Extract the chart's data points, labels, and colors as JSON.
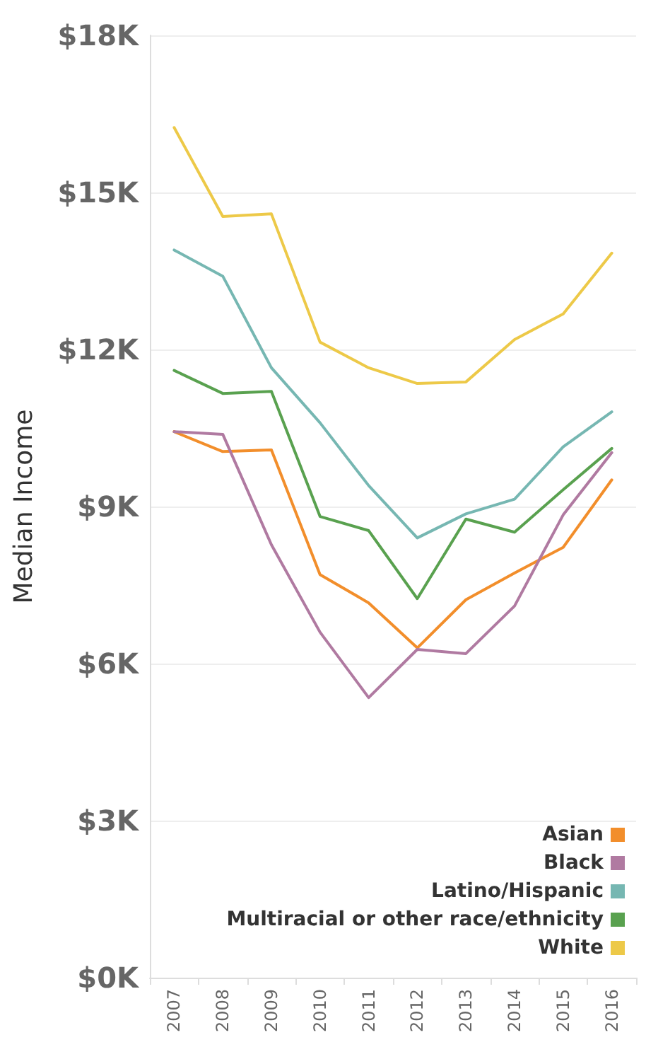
{
  "chart_data": {
    "type": "line",
    "ylabel": "Median Income",
    "categories": [
      "2007",
      "2008",
      "2009",
      "2010",
      "2011",
      "2012",
      "2013",
      "2014",
      "2015",
      "2016"
    ],
    "series": [
      {
        "name": "Asian",
        "color": "#f28e2b",
        "values": [
          10.43,
          10.05,
          10.08,
          7.7,
          7.16,
          6.3,
          7.22,
          7.73,
          8.22,
          9.51
        ]
      },
      {
        "name": "Black",
        "color": "#b07aa1",
        "values": [
          10.43,
          10.38,
          8.27,
          6.6,
          5.35,
          6.27,
          6.19,
          7.1,
          8.84,
          10.03
        ]
      },
      {
        "name": "Latino/Hispanic",
        "color": "#76b7b2",
        "values": [
          13.9,
          13.4,
          11.65,
          10.6,
          9.4,
          8.4,
          8.86,
          9.14,
          10.14,
          10.81
        ]
      },
      {
        "name": "Multiracial or other race/ethnicity",
        "color": "#59a14f",
        "values": [
          11.6,
          11.16,
          11.2,
          8.81,
          8.54,
          7.24,
          8.76,
          8.51,
          9.32,
          10.11
        ]
      },
      {
        "name": "White",
        "color": "#edc948",
        "values": [
          16.24,
          14.54,
          14.59,
          12.14,
          11.65,
          11.35,
          11.38,
          12.19,
          12.68,
          13.84
        ]
      }
    ],
    "ylim": [
      0,
      18
    ],
    "yticks": [
      {
        "value": 0,
        "label": "$0K"
      },
      {
        "value": 3,
        "label": "$3K"
      },
      {
        "value": 6,
        "label": "$6K"
      },
      {
        "value": 9,
        "label": "$9K"
      },
      {
        "value": 12,
        "label": "$12K"
      },
      {
        "value": 15,
        "label": "$15K"
      },
      {
        "value": 18,
        "label": "$18K"
      }
    ],
    "grid": "y",
    "legend": "bottom right",
    "marker": "none",
    "line_style": "solid"
  }
}
